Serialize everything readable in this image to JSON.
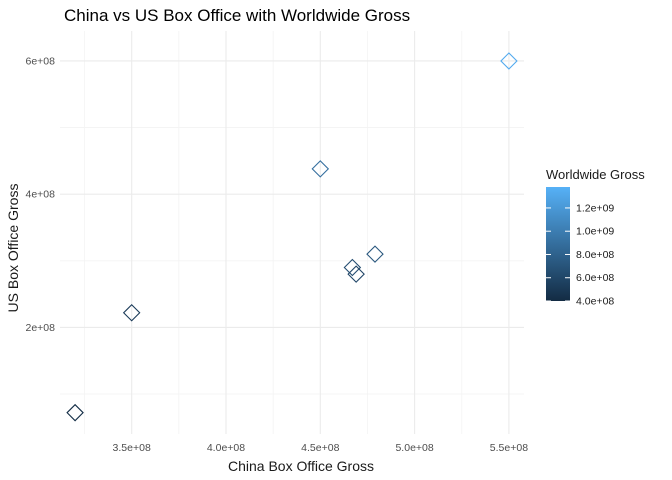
{
  "chart_data": {
    "type": "scatter",
    "title": "China vs US Box Office with Worldwide Gross",
    "xlabel": "China Box Office Gross",
    "ylabel": "US Box Office Gross",
    "xlim": [
      312000000,
      558000000
    ],
    "ylim": [
      40000000,
      645000000
    ],
    "x_ticks": [
      350000000,
      400000000,
      450000000,
      500000000,
      550000000
    ],
    "x_tick_labels": [
      "3.5e+08",
      "4.0e+08",
      "4.5e+08",
      "5.0e+08",
      "5.5e+08"
    ],
    "y_ticks": [
      200000000,
      400000000,
      600000000
    ],
    "y_tick_labels": [
      "2e+08",
      "4e+08",
      "6e+08"
    ],
    "grid": true,
    "marker": "open-diamond",
    "points": [
      {
        "x": 320000000,
        "y": 72000000,
        "color_value": 420000000
      },
      {
        "x": 350000000,
        "y": 222000000,
        "color_value": 520000000
      },
      {
        "x": 450000000,
        "y": 438000000,
        "color_value": 900000000
      },
      {
        "x": 467000000,
        "y": 290000000,
        "color_value": 650000000
      },
      {
        "x": 469000000,
        "y": 280000000,
        "color_value": 600000000
      },
      {
        "x": 479000000,
        "y": 310000000,
        "color_value": 720000000
      },
      {
        "x": 550000000,
        "y": 600000000,
        "color_value": 1330000000
      }
    ],
    "legend": {
      "title": "Worldwide Gross",
      "placement": "right",
      "type": "colorbar",
      "range": [
        400000000,
        1380000000
      ],
      "ticks": [
        400000000,
        600000000,
        800000000,
        1000000000,
        1200000000
      ],
      "tick_labels": [
        "4.0e+08",
        "6.0e+08",
        "8.0e+08",
        "1.0e+09",
        "1.2e+09"
      ],
      "low_color": "#132b43",
      "high_color": "#56b1f7"
    }
  }
}
